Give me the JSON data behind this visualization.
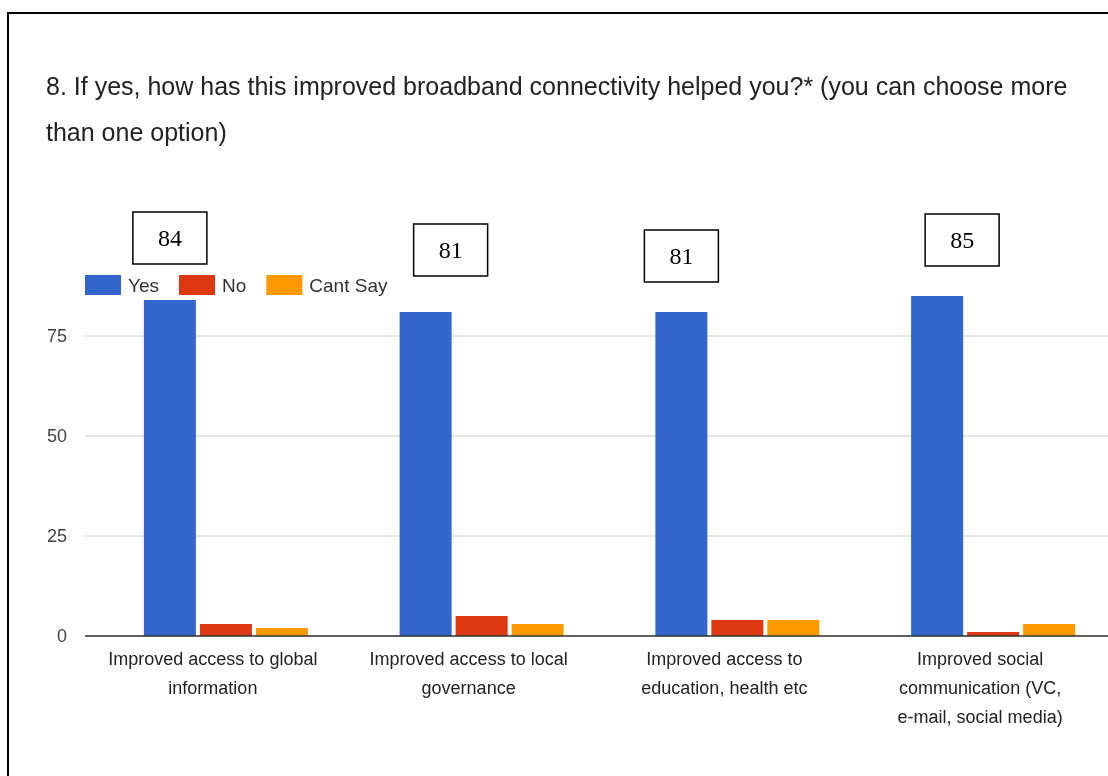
{
  "chart_data": {
    "type": "bar",
    "title": "8. If yes, how has this improved broadband connectivity helped you?* (you can choose more than one option)",
    "categories": [
      "Improved access to global information",
      "Improved access to local governance",
      "Improved access to education, health etc",
      "Improved social communication (VC, e-mail, social media)"
    ],
    "series": [
      {
        "name": "Yes",
        "color": "#3366cc",
        "values": [
          84,
          81,
          81,
          85
        ],
        "value_labels": [
          "84",
          "81",
          "81",
          "85"
        ]
      },
      {
        "name": "No",
        "color": "#dc3912",
        "values": [
          3,
          5,
          4,
          1
        ]
      },
      {
        "name": "Cant Say",
        "color": "#ff9900",
        "values": [
          2,
          3,
          4,
          3
        ]
      }
    ],
    "ylim": [
      0,
      90
    ],
    "yticks": [
      0,
      25,
      50,
      75
    ],
    "grid": "y",
    "legend": "top left"
  }
}
